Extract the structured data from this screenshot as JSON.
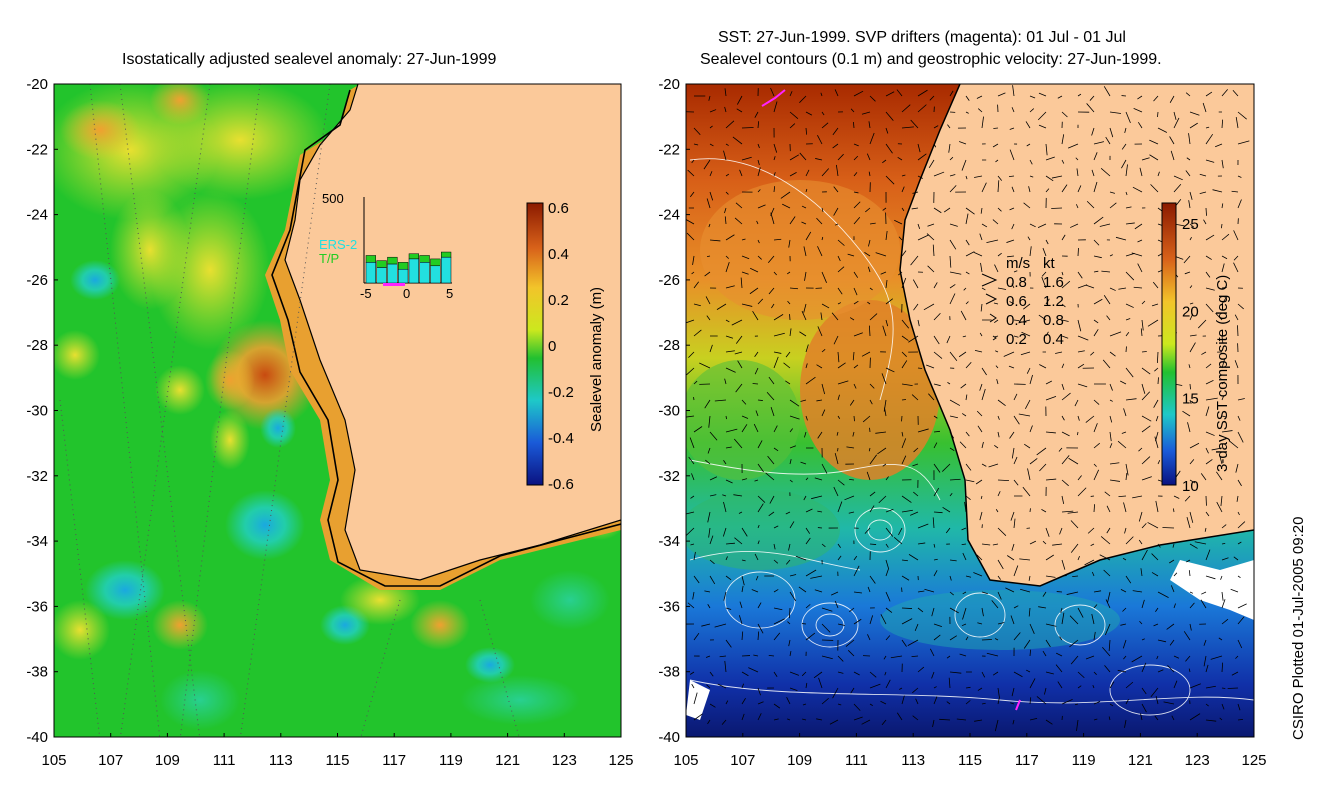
{
  "left_panel": {
    "title": "Isostatically adjusted sealevel anomaly: 27-Jun-1999",
    "colorbar_label": "Sealevel anomaly (m)",
    "colorbar_ticks": [
      "0.6",
      "0.4",
      "0.2",
      "0",
      "-0.2",
      "-0.4",
      "-0.6"
    ],
    "inset": {
      "y_max_label": "500",
      "series": [
        "ERS-2",
        "T/P"
      ],
      "series_colors": [
        "#22e0e0",
        "#22cc22"
      ],
      "x_ticks": [
        "-5",
        "0",
        "5"
      ],
      "ers2_values": [
        120,
        90,
        110,
        80,
        140,
        120,
        100,
        150
      ],
      "tp_values": [
        160,
        130,
        150,
        120,
        170,
        160,
        140,
        180
      ]
    }
  },
  "right_panel": {
    "title_line1": "SST: 27-Jun-1999. SVP drifters (magenta): 01 Jul - 01 Jul",
    "title_line2": "Sealevel contours (0.1 m) and geostrophic velocity: 27-Jun-1999.",
    "colorbar_label": "3-day SST composite (deg C)",
    "colorbar_ticks": [
      "25",
      "20",
      "15",
      "10"
    ],
    "velocity_legend": {
      "header_ms": "m/s",
      "header_kt": "kt",
      "rows": [
        {
          "ms": "0.8",
          "kt": "1.6"
        },
        {
          "ms": "0.6",
          "kt": "1.2"
        },
        {
          "ms": "0.4",
          "kt": "0.8"
        },
        {
          "ms": "0.2",
          "kt": "0.4"
        }
      ]
    }
  },
  "axes": {
    "y_ticks": [
      "-20",
      "-22",
      "-24",
      "-26",
      "-28",
      "-30",
      "-32",
      "-34",
      "-36",
      "-38",
      "-40"
    ],
    "x_ticks": [
      "105",
      "107",
      "109",
      "111",
      "113",
      "115",
      "117",
      "119",
      "121",
      "123",
      "125"
    ]
  },
  "credit": "CSIRO Plotted 01-Jul-2005 09:20",
  "colors": {
    "land": "#fbc99a",
    "ocean_mid": "#22c42c",
    "warm_sst": "#e07a18"
  }
}
